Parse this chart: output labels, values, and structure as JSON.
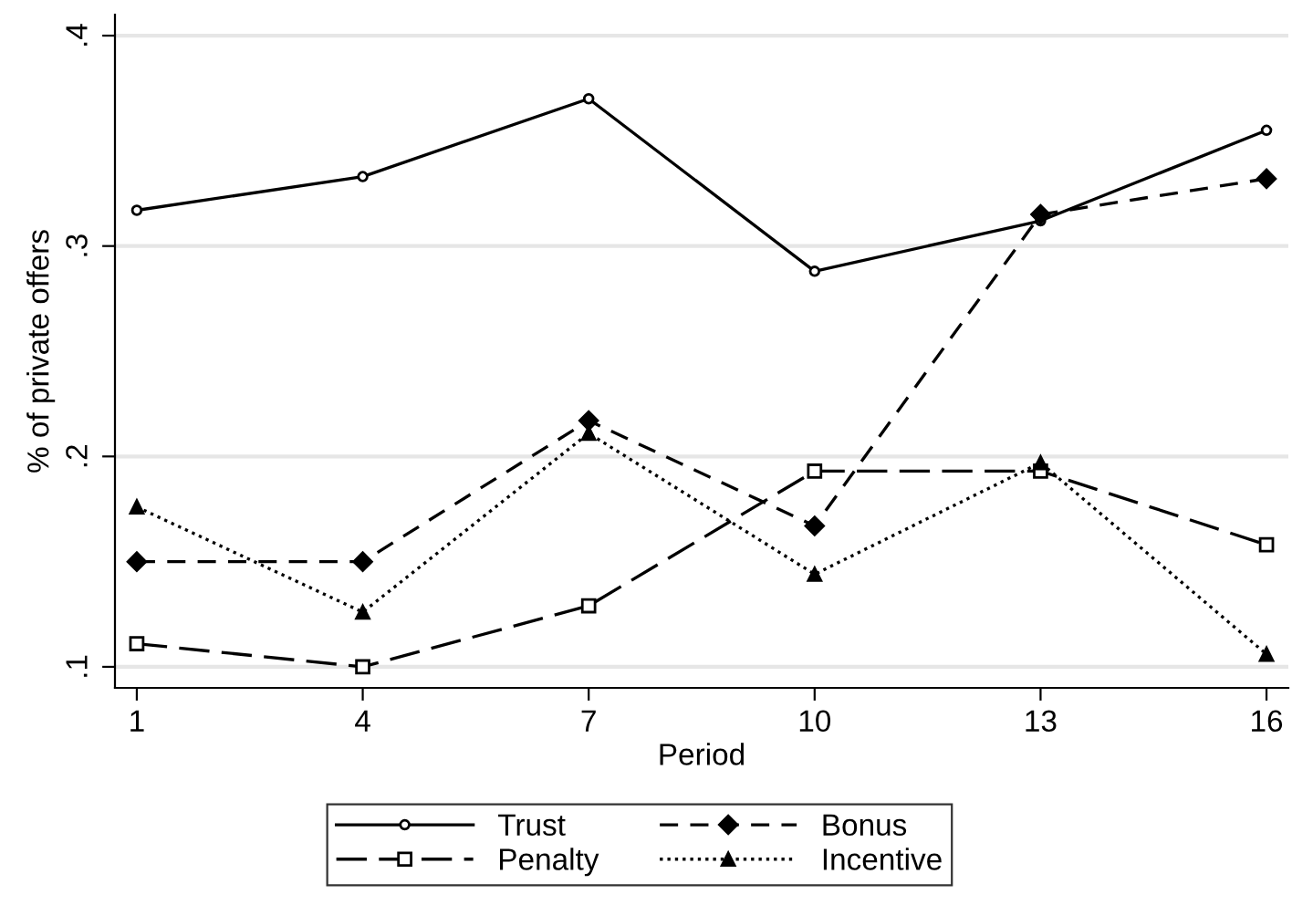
{
  "chart_data": {
    "type": "line",
    "xlabel": "Period",
    "ylabel": "% of private offers",
    "x": [
      1,
      4,
      7,
      10,
      13,
      16
    ],
    "xlim": [
      0.71,
      16.29
    ],
    "xticks": [
      1,
      4,
      7,
      10,
      13,
      16
    ],
    "ylim": [
      0.09,
      0.41
    ],
    "yticks": [
      {
        "value": 0.1,
        "label": ".1"
      },
      {
        "value": 0.2,
        "label": ".2"
      },
      {
        "value": 0.3,
        "label": ".3"
      },
      {
        "value": 0.4,
        "label": ".4"
      }
    ],
    "grid": "y",
    "legend": "bottom",
    "series": [
      {
        "name": "Trust",
        "color": "#000000",
        "marker": "circle",
        "line_style": "solid",
        "values": [
          0.317,
          0.333,
          0.37,
          0.288,
          0.312,
          0.355
        ]
      },
      {
        "name": "Bonus",
        "color": "#000000",
        "marker": "diamond",
        "line_style": "dashed",
        "values": [
          0.15,
          0.15,
          0.217,
          0.167,
          0.315,
          0.332
        ]
      },
      {
        "name": "Penalty",
        "color": "#000000",
        "marker": "square",
        "line_style": "dashed",
        "values": [
          0.111,
          0.1,
          0.129,
          0.193,
          0.193,
          0.158
        ]
      },
      {
        "name": "Incentive",
        "color": "#000000",
        "marker": "triangle",
        "line_style": "dotted",
        "values": [
          0.176,
          0.126,
          0.211,
          0.144,
          0.197,
          0.106
        ]
      }
    ]
  }
}
